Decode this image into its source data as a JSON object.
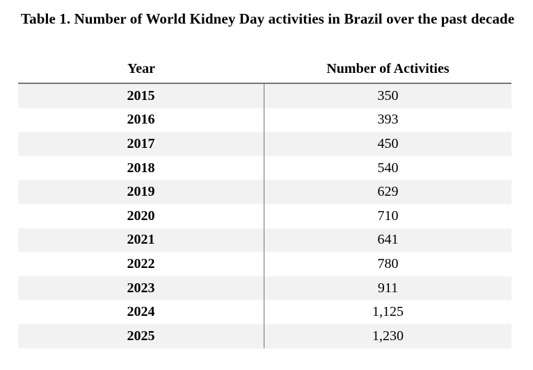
{
  "title": "Table 1. Number of World Kidney Day activities in Brazil over the past decade",
  "table": {
    "columns": [
      "Year",
      "Number of Activities"
    ],
    "rows": [
      {
        "year": "2015",
        "activities": "350"
      },
      {
        "year": "2016",
        "activities": "393"
      },
      {
        "year": "2017",
        "activities": "450"
      },
      {
        "year": "2018",
        "activities": "540"
      },
      {
        "year": "2019",
        "activities": "629"
      },
      {
        "year": "2020",
        "activities": "710"
      },
      {
        "year": "2021",
        "activities": "641"
      },
      {
        "year": "2022",
        "activities": "780"
      },
      {
        "year": "2023",
        "activities": "911"
      },
      {
        "year": "2024",
        "activities": "1,125"
      },
      {
        "year": "2025",
        "activities": "1,230"
      }
    ]
  },
  "chart_data": {
    "type": "table",
    "title": "Table 1. Number of World Kidney Day activities in Brazil over the past decade",
    "columns": [
      "Year",
      "Number of Activities"
    ],
    "categories": [
      "2015",
      "2016",
      "2017",
      "2018",
      "2019",
      "2020",
      "2021",
      "2022",
      "2023",
      "2024",
      "2025"
    ],
    "values": [
      350,
      393,
      450,
      540,
      629,
      710,
      641,
      780,
      911,
      1125,
      1230
    ]
  },
  "colors": {
    "row_shading": "#f2f2f2",
    "border_top": "#767676",
    "border_divider": "#6e6e6e",
    "text": "#000000",
    "background": "#ffffff"
  }
}
